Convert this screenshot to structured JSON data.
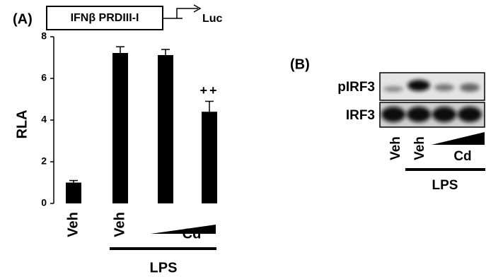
{
  "chart_data": {
    "type": "bar",
    "panel_label": "(A)",
    "construct": "IFNβ PRDIII-I",
    "reporter": "Luc",
    "y_label": "RLA",
    "categories": [
      "Veh",
      "Veh",
      null,
      null
    ],
    "values": [
      1.0,
      7.22,
      7.12,
      4.4
    ],
    "errors": [
      0.1,
      0.3,
      0.27,
      0.5
    ],
    "color": "#000000",
    "ylim": [
      0,
      8
    ],
    "yticks": [
      0,
      2,
      4,
      6,
      8
    ],
    "grid": false,
    "annotations": [
      "++"
    ],
    "dose_label": "Cd",
    "group_label": "LPS"
  },
  "blot": {
    "panel_label": "(B)",
    "rows": [
      "pIRF3",
      "IRF3"
    ],
    "lanes": [
      "Veh",
      "Veh"
    ],
    "dose_label": "Cd",
    "group_label": "LPS"
  }
}
